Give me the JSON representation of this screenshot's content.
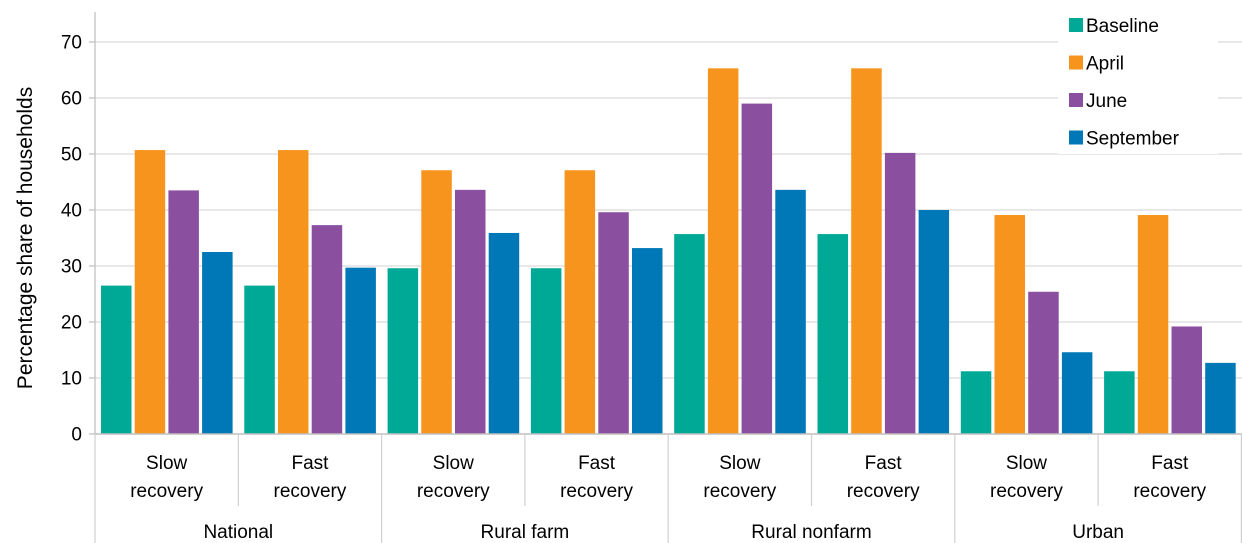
{
  "chart_data": {
    "type": "bar",
    "title": "",
    "xlabel": "",
    "ylabel": "Percentage share of households",
    "ylim": [
      0,
      75
    ],
    "yticks": [
      0,
      10,
      20,
      30,
      40,
      50,
      60,
      70
    ],
    "grid": true,
    "legend_position": "top-right",
    "groups": [
      {
        "label": "National",
        "subcategories": [
          "Slow recovery",
          "Fast recovery"
        ]
      },
      {
        "label": "Rural farm",
        "subcategories": [
          "Slow recovery",
          "Fast recovery"
        ]
      },
      {
        "label": "Rural nonfarm",
        "subcategories": [
          "Slow recovery",
          "Fast recovery"
        ]
      },
      {
        "label": "Urban",
        "subcategories": [
          "Slow recovery",
          "Fast recovery"
        ]
      }
    ],
    "subcategory_labels": [
      [
        "Slow",
        "recovery"
      ],
      [
        "Fast",
        "recovery"
      ]
    ],
    "series": [
      {
        "name": "Baseline",
        "color": "#00A896",
        "values": [
          26.5,
          26.5,
          29.6,
          29.6,
          35.7,
          35.7,
          11.2,
          11.2
        ]
      },
      {
        "name": "April",
        "color": "#F7941D",
        "values": [
          50.7,
          50.7,
          47.1,
          47.1,
          65.3,
          65.3,
          39.1,
          39.1
        ]
      },
      {
        "name": "June",
        "color": "#8B4FA0",
        "values": [
          43.5,
          37.3,
          43.6,
          39.6,
          59.0,
          50.2,
          25.4,
          19.2
        ]
      },
      {
        "name": "September",
        "color": "#0077B6",
        "values": [
          32.5,
          29.7,
          35.9,
          33.2,
          43.6,
          40.0,
          14.6,
          12.7
        ]
      }
    ]
  }
}
